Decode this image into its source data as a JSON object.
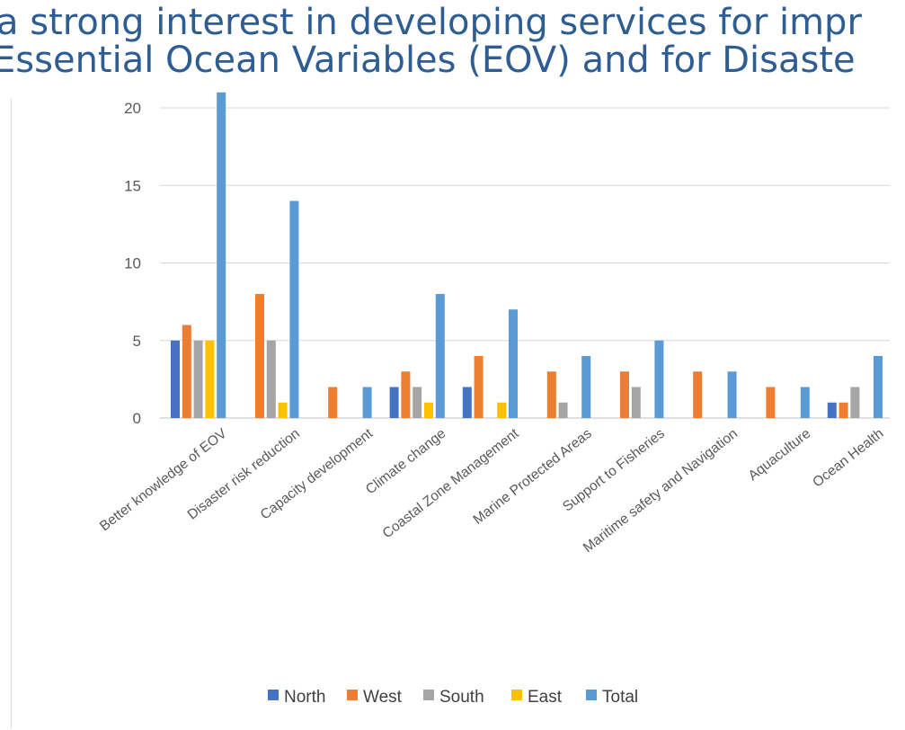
{
  "page": {
    "headline_line1": "a strong interest in developing services for impr",
    "headline_line2": "Essential Ocean Variables (EOV) and for Disaste"
  },
  "chart_data": {
    "type": "bar",
    "categories": [
      "Better knowledge of EOV",
      "Disaster risk reduction",
      "Capacity development",
      "Climate change",
      "Coastal Zone Management",
      "Marine Protected Areas",
      "Support to Fisheries",
      "Maritime safety and Navigation",
      "Aquaculture",
      "Ocean Health"
    ],
    "series": [
      {
        "name": "North",
        "color": "#4472c4",
        "values": [
          5,
          0,
          0,
          2,
          2,
          0,
          0,
          0,
          0,
          1
        ]
      },
      {
        "name": "West",
        "color": "#ed7d31",
        "values": [
          6,
          8,
          2,
          3,
          4,
          3,
          3,
          3,
          2,
          1
        ]
      },
      {
        "name": "South",
        "color": "#a5a5a5",
        "values": [
          5,
          5,
          0,
          2,
          0,
          1,
          2,
          0,
          0,
          2
        ]
      },
      {
        "name": "East",
        "color": "#ffc000",
        "values": [
          5,
          1,
          0,
          1,
          1,
          0,
          0,
          0,
          0,
          0
        ]
      },
      {
        "name": "Total",
        "color": "#5b9bd5",
        "values": [
          21,
          14,
          2,
          8,
          7,
          4,
          5,
          3,
          2,
          4
        ]
      }
    ],
    "yticks": [
      0,
      5,
      10,
      15,
      20
    ],
    "ylim": [
      0,
      20
    ],
    "grid": true,
    "legend_position": "bottom"
  }
}
